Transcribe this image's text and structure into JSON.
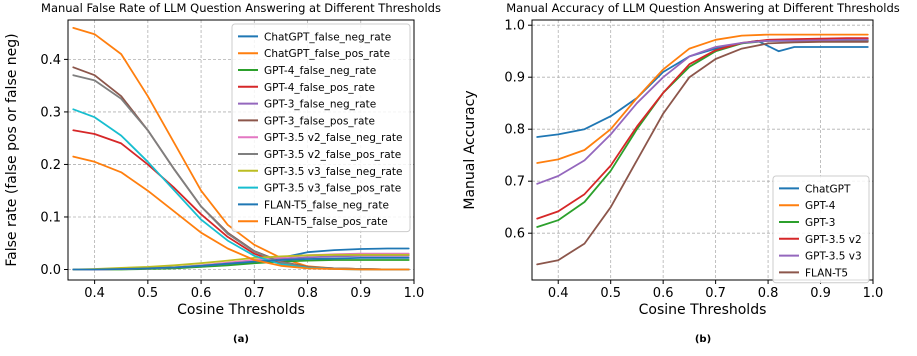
{
  "chart_data": [
    {
      "type": "line",
      "title": "Manual False Rate of LLM Question Answering at Different Thresholds",
      "xlabel": "Cosine Thresholds",
      "ylabel": "False rate (false pos or false neg)",
      "xlim": [
        0.35,
        1.0
      ],
      "ylim": [
        -0.02,
        0.475
      ],
      "xticks": [
        0.4,
        0.5,
        0.6,
        0.7,
        0.8,
        0.9,
        1.0
      ],
      "xtick_labels": [
        "0.4",
        "0.5",
        "0.6",
        "0.7",
        "0.8",
        "0.9",
        "1.0"
      ],
      "yticks": [
        0.0,
        0.1,
        0.2,
        0.3,
        0.4
      ],
      "ytick_labels": [
        "0.0",
        "0.1",
        "0.2",
        "0.3",
        "0.4"
      ],
      "grid": true,
      "legend_position": "top-right",
      "caption": "(a)",
      "series": [
        {
          "name": "ChatGPT_false_neg_rate",
          "color": "#1f77b4",
          "x": [
            0.36,
            0.4,
            0.45,
            0.5,
            0.55,
            0.6,
            0.65,
            0.7,
            0.75,
            0.8,
            0.85,
            0.9,
            0.95,
            0.99
          ],
          "y": [
            0.0,
            0.0,
            0.001,
            0.002,
            0.003,
            0.006,
            0.01,
            0.015,
            0.022,
            0.033,
            0.037,
            0.039,
            0.04,
            0.04
          ]
        },
        {
          "name": "ChatGPT_false_pos_rate",
          "color": "#ff7f0e",
          "x": [
            0.36,
            0.4,
            0.45,
            0.5,
            0.55,
            0.6,
            0.65,
            0.7,
            0.75,
            0.8,
            0.85,
            0.9,
            0.95,
            0.99
          ],
          "y": [
            0.46,
            0.448,
            0.41,
            0.33,
            0.24,
            0.15,
            0.085,
            0.047,
            0.022,
            0.006,
            0.002,
            0.001,
            0.0,
            0.0
          ]
        },
        {
          "name": "GPT-4_false_neg_rate",
          "color": "#2ca02c",
          "x": [
            0.36,
            0.4,
            0.45,
            0.5,
            0.55,
            0.6,
            0.65,
            0.7,
            0.75,
            0.8,
            0.85,
            0.9,
            0.95,
            0.99
          ],
          "y": [
            0.0,
            0.0,
            0.0,
            0.001,
            0.002,
            0.005,
            0.008,
            0.012,
            0.015,
            0.017,
            0.018,
            0.018,
            0.018,
            0.018
          ]
        },
        {
          "name": "GPT-4_false_pos_rate",
          "color": "#d62728",
          "x": [
            0.36,
            0.4,
            0.45,
            0.5,
            0.55,
            0.6,
            0.65,
            0.7,
            0.75,
            0.8,
            0.85,
            0.9,
            0.95,
            0.99
          ],
          "y": [
            0.265,
            0.258,
            0.24,
            0.2,
            0.155,
            0.105,
            0.062,
            0.03,
            0.012,
            0.004,
            0.002,
            0.001,
            0.0,
            0.0
          ]
        },
        {
          "name": "GPT-3_false_neg_rate",
          "color": "#9467bd",
          "x": [
            0.36,
            0.4,
            0.45,
            0.5,
            0.55,
            0.6,
            0.65,
            0.7,
            0.75,
            0.8,
            0.85,
            0.9,
            0.95,
            0.99
          ],
          "y": [
            0.0,
            0.0,
            0.001,
            0.002,
            0.004,
            0.007,
            0.011,
            0.016,
            0.02,
            0.023,
            0.025,
            0.026,
            0.026,
            0.026
          ]
        },
        {
          "name": "GPT-3_false_pos_rate",
          "color": "#8c564b",
          "x": [
            0.36,
            0.4,
            0.45,
            0.5,
            0.55,
            0.6,
            0.65,
            0.7,
            0.75,
            0.8,
            0.85,
            0.9,
            0.95,
            0.99
          ],
          "y": [
            0.385,
            0.37,
            0.33,
            0.265,
            0.19,
            0.12,
            0.07,
            0.035,
            0.015,
            0.005,
            0.002,
            0.001,
            0.0,
            0.0
          ]
        },
        {
          "name": "GPT-3.5 v2_false_neg_rate",
          "color": "#e377c2",
          "x": [
            0.36,
            0.4,
            0.45,
            0.5,
            0.55,
            0.6,
            0.65,
            0.7,
            0.75,
            0.8,
            0.85,
            0.9,
            0.95,
            0.99
          ],
          "y": [
            0.0,
            0.0,
            0.001,
            0.002,
            0.004,
            0.008,
            0.013,
            0.018,
            0.023,
            0.027,
            0.029,
            0.03,
            0.03,
            0.03
          ]
        },
        {
          "name": "GPT-3.5 v2_false_pos_rate",
          "color": "#7f7f7f",
          "x": [
            0.36,
            0.4,
            0.45,
            0.5,
            0.55,
            0.6,
            0.65,
            0.7,
            0.75,
            0.8,
            0.85,
            0.9,
            0.95,
            0.99
          ],
          "y": [
            0.37,
            0.36,
            0.325,
            0.265,
            0.19,
            0.12,
            0.068,
            0.034,
            0.014,
            0.004,
            0.002,
            0.001,
            0.0,
            0.0
          ]
        },
        {
          "name": "GPT-3.5 v3_false_neg_rate",
          "color": "#bcbd22",
          "x": [
            0.36,
            0.4,
            0.45,
            0.5,
            0.55,
            0.6,
            0.65,
            0.7,
            0.75,
            0.8,
            0.85,
            0.9,
            0.95,
            0.99
          ],
          "y": [
            0.0,
            0.001,
            0.003,
            0.005,
            0.008,
            0.012,
            0.017,
            0.022,
            0.025,
            0.027,
            0.028,
            0.028,
            0.028,
            0.028
          ]
        },
        {
          "name": "GPT-3.5 v3_false_pos_rate",
          "color": "#17becf",
          "x": [
            0.36,
            0.4,
            0.45,
            0.5,
            0.55,
            0.6,
            0.65,
            0.7,
            0.75,
            0.8,
            0.85,
            0.9,
            0.95,
            0.99
          ],
          "y": [
            0.305,
            0.29,
            0.255,
            0.205,
            0.15,
            0.095,
            0.055,
            0.026,
            0.01,
            0.003,
            0.001,
            0.0,
            0.0,
            0.0
          ]
        },
        {
          "name": "FLAN-T5_false_neg_rate",
          "color": "#1f77b4",
          "x": [
            0.36,
            0.4,
            0.45,
            0.5,
            0.55,
            0.6,
            0.65,
            0.7,
            0.75,
            0.8,
            0.85,
            0.9,
            0.95,
            0.99
          ],
          "y": [
            0.0,
            0.0,
            0.001,
            0.002,
            0.004,
            0.007,
            0.011,
            0.015,
            0.018,
            0.02,
            0.021,
            0.022,
            0.022,
            0.022
          ]
        },
        {
          "name": "FLAN-T5_false_pos_rate",
          "color": "#ff7f0e",
          "x": [
            0.36,
            0.4,
            0.45,
            0.5,
            0.55,
            0.6,
            0.65,
            0.7,
            0.75,
            0.8,
            0.85,
            0.9,
            0.95,
            0.99
          ],
          "y": [
            0.215,
            0.205,
            0.185,
            0.15,
            0.11,
            0.07,
            0.04,
            0.018,
            0.007,
            0.002,
            0.001,
            0.0,
            0.0,
            0.0
          ]
        }
      ]
    },
    {
      "type": "line",
      "title": "Manual Accuracy of LLM Question Answering at Different Thresholds",
      "xlabel": "Cosine Thresholds",
      "ylabel": "Manual Accuracy",
      "xlim": [
        0.35,
        1.0
      ],
      "ylim": [
        0.51,
        1.01
      ],
      "xticks": [
        0.4,
        0.5,
        0.6,
        0.7,
        0.8,
        0.9,
        1.0
      ],
      "xtick_labels": [
        "0.4",
        "0.5",
        "0.6",
        "0.7",
        "0.8",
        "0.9",
        "1.0"
      ],
      "yticks": [
        0.6,
        0.7,
        0.8,
        0.9,
        1.0
      ],
      "ytick_labels": [
        "0.6",
        "0.7",
        "0.8",
        "0.9",
        "1.0"
      ],
      "grid": true,
      "legend_position": "bottom-right",
      "caption": "(b)",
      "series": [
        {
          "name": "ChatGPT",
          "color": "#1f77b4",
          "x": [
            0.36,
            0.4,
            0.45,
            0.5,
            0.55,
            0.6,
            0.65,
            0.7,
            0.75,
            0.78,
            0.8,
            0.82,
            0.85,
            0.9,
            0.95,
            0.99
          ],
          "y": [
            0.785,
            0.79,
            0.8,
            0.825,
            0.86,
            0.91,
            0.94,
            0.955,
            0.965,
            0.97,
            0.96,
            0.95,
            0.958,
            0.958,
            0.958,
            0.958
          ]
        },
        {
          "name": "GPT-4",
          "color": "#ff7f0e",
          "x": [
            0.36,
            0.4,
            0.45,
            0.5,
            0.55,
            0.6,
            0.65,
            0.7,
            0.75,
            0.8,
            0.85,
            0.9,
            0.95,
            0.99
          ],
          "y": [
            0.735,
            0.742,
            0.76,
            0.8,
            0.86,
            0.915,
            0.955,
            0.972,
            0.98,
            0.982,
            0.982,
            0.982,
            0.982,
            0.982
          ]
        },
        {
          "name": "GPT-3",
          "color": "#2ca02c",
          "x": [
            0.36,
            0.4,
            0.45,
            0.5,
            0.55,
            0.6,
            0.65,
            0.7,
            0.75,
            0.8,
            0.85,
            0.9,
            0.95,
            0.99
          ],
          "y": [
            0.612,
            0.625,
            0.66,
            0.72,
            0.8,
            0.87,
            0.92,
            0.95,
            0.965,
            0.97,
            0.97,
            0.97,
            0.97,
            0.97
          ]
        },
        {
          "name": "GPT-3.5 v2",
          "color": "#d62728",
          "x": [
            0.36,
            0.4,
            0.45,
            0.5,
            0.55,
            0.6,
            0.65,
            0.7,
            0.75,
            0.8,
            0.85,
            0.9,
            0.95,
            0.99
          ],
          "y": [
            0.628,
            0.642,
            0.675,
            0.73,
            0.805,
            0.87,
            0.925,
            0.952,
            0.966,
            0.972,
            0.973,
            0.974,
            0.975,
            0.975
          ]
        },
        {
          "name": "GPT-3.5 v3",
          "color": "#9467bd",
          "x": [
            0.36,
            0.4,
            0.45,
            0.5,
            0.55,
            0.6,
            0.65,
            0.7,
            0.75,
            0.8,
            0.85,
            0.9,
            0.95,
            0.99
          ],
          "y": [
            0.695,
            0.71,
            0.74,
            0.79,
            0.85,
            0.9,
            0.94,
            0.958,
            0.966,
            0.97,
            0.97,
            0.971,
            0.972,
            0.972
          ]
        },
        {
          "name": "FLAN-T5",
          "color": "#8c564b",
          "x": [
            0.36,
            0.4,
            0.45,
            0.5,
            0.55,
            0.6,
            0.65,
            0.7,
            0.75,
            0.8,
            0.85,
            0.9,
            0.95,
            0.99
          ],
          "y": [
            0.54,
            0.548,
            0.58,
            0.65,
            0.74,
            0.83,
            0.9,
            0.935,
            0.955,
            0.965,
            0.967,
            0.968,
            0.968,
            0.968
          ]
        }
      ]
    }
  ]
}
